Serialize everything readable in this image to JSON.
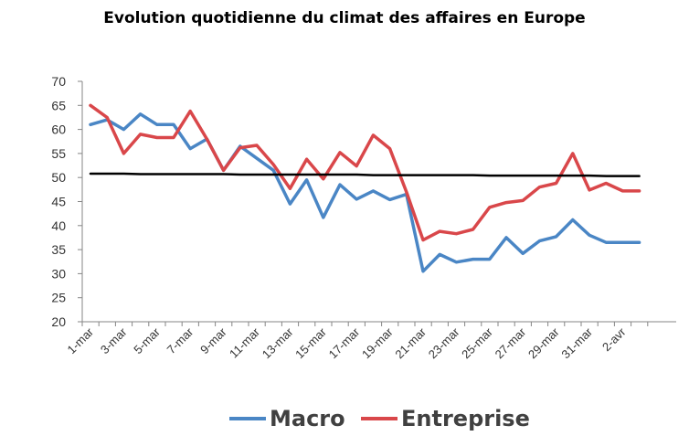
{
  "chart_data": {
    "type": "line",
    "title": "Evolution quotidienne du climat des affaires en Europe",
    "xlabel": "",
    "ylabel": "",
    "ylim": [
      20,
      70
    ],
    "yticks": [
      "20",
      "25",
      "30",
      "35",
      "40",
      "45",
      "50",
      "55",
      "60",
      "65",
      "70"
    ],
    "categories": [
      "1-mar",
      "2-mar",
      "3-mar",
      "4-mar",
      "5-mar",
      "6-mar",
      "7-mar",
      "8-mar",
      "9-mar",
      "10-mar",
      "11-mar",
      "12-mar",
      "13-mar",
      "14-mar",
      "15-mar",
      "16-mar",
      "17-mar",
      "18-mar",
      "19-mar",
      "20-mar",
      "21-mar",
      "22-mar",
      "23-mar",
      "24-mar",
      "25-mar",
      "26-mar",
      "27-mar",
      "28-mar",
      "29-mar",
      "30-mar",
      "31-mar",
      "1-avr",
      "2-avr",
      "3-avr"
    ],
    "xtick_labels": [
      "1-mar",
      "3-mar",
      "5-mar",
      "7-mar",
      "9-mar",
      "11-mar",
      "13-mar",
      "15-mar",
      "17-mar",
      "19-mar",
      "21-mar",
      "23-mar",
      "25-mar",
      "27-mar",
      "29-mar",
      "31-mar",
      "2-avr"
    ],
    "series": [
      {
        "name": "Macro",
        "color": "#4a86c5",
        "values": [
          61.0,
          62.0,
          60.0,
          63.2,
          61.0,
          61.0,
          56.0,
          58.0,
          51.5,
          56.5,
          54.0,
          51.5,
          44.5,
          49.5,
          41.7,
          48.5,
          45.5,
          47.2,
          45.4,
          46.5,
          30.5,
          34.0,
          32.4,
          33.0,
          33.0,
          37.5,
          34.2,
          36.8,
          37.7,
          41.2,
          38.0,
          36.5,
          36.5,
          36.5
        ]
      },
      {
        "name": "Entreprise",
        "color": "#d9474a",
        "values": [
          65.0,
          62.5,
          55.0,
          59.0,
          58.3,
          58.3,
          63.8,
          58.0,
          51.5,
          56.2,
          56.7,
          52.7,
          47.7,
          53.8,
          49.7,
          55.2,
          52.4,
          58.8,
          56.0,
          47.0,
          37.0,
          38.8,
          38.3,
          39.2,
          43.8,
          44.8,
          45.2,
          48.0,
          48.8,
          55.0,
          47.4,
          48.8,
          47.2,
          47.2
        ]
      },
      {
        "name": "",
        "color": "#000000",
        "values": [
          50.8,
          50.8,
          50.8,
          50.7,
          50.7,
          50.7,
          50.7,
          50.7,
          50.7,
          50.6,
          50.6,
          50.6,
          50.6,
          50.6,
          50.6,
          50.6,
          50.6,
          50.5,
          50.5,
          50.5,
          50.5,
          50.5,
          50.5,
          50.5,
          50.4,
          50.4,
          50.4,
          50.4,
          50.4,
          50.4,
          50.4,
          50.3,
          50.3,
          50.3
        ]
      }
    ],
    "legend": {
      "position": "bottom",
      "entries": [
        "Macro",
        "Entreprise"
      ]
    },
    "grid": false
  }
}
